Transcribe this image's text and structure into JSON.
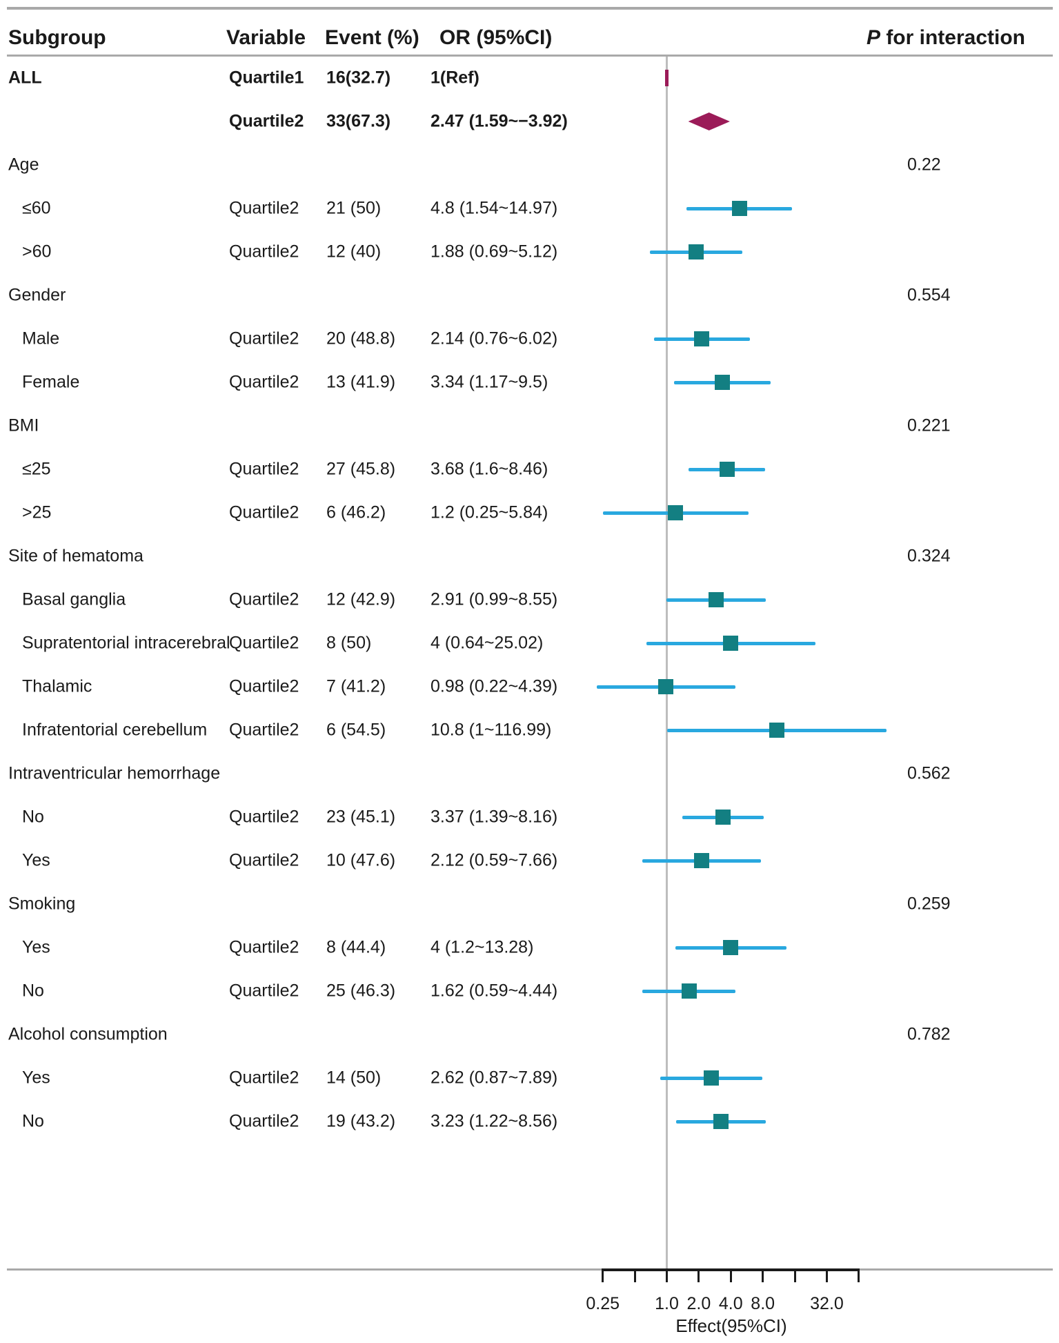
{
  "header": {
    "subgroup": "Subgroup",
    "variable": "Variable",
    "event": "Event (%)",
    "or": "OR (95%CI)",
    "p_italic": "P",
    "p_rest": " for interaction"
  },
  "colors": {
    "square": "#137f82",
    "ci_line": "#29a8df",
    "summary": "#9b1b58",
    "rule_gray": "#a9a9a9",
    "refline_gray": "#bdbdbd",
    "axis_black": "#1a1a1a",
    "text": "#1a1a1a"
  },
  "chart_data": {
    "type": "forest",
    "xlabel": "Effect(95%CI)",
    "x_scale": "log2",
    "x_range": [
      0.25,
      64
    ],
    "reference_line": 1.0,
    "x_ticks": [
      0.25,
      0.5,
      1.0,
      2.0,
      4.0,
      8.0,
      16.0,
      32.0,
      64.0
    ],
    "x_tick_labels": [
      "0.25",
      "",
      "1.0",
      "2.0",
      "4.0",
      "8.0",
      "",
      "32.0",
      ""
    ],
    "legend": "none",
    "rows": [
      {
        "kind": "all",
        "label": "ALL",
        "variable": "Quartile1",
        "event": "16(32.7)",
        "or": "1(Ref)",
        "marker": "ref-tick",
        "est": 1
      },
      {
        "kind": "all",
        "label": "",
        "variable": "Quartile2",
        "event": "33(67.3)",
        "or": "2.47 (1.59~−3.92)",
        "marker": "diamond",
        "est": 2.47,
        "lo": 1.59,
        "hi": 3.92
      },
      {
        "kind": "section",
        "label": "Age",
        "p": "0.22"
      },
      {
        "kind": "item",
        "label": "≤60",
        "variable": "Quartile2",
        "event": "21 (50)",
        "or": "4.8 (1.54~14.97)",
        "est": 4.8,
        "lo": 1.54,
        "hi": 14.97
      },
      {
        "kind": "item",
        "label": ">60",
        "variable": "Quartile2",
        "event": "12 (40)",
        "or": "1.88 (0.69~5.12)",
        "est": 1.88,
        "lo": 0.69,
        "hi": 5.12
      },
      {
        "kind": "section",
        "label": "Gender",
        "p": "0.554"
      },
      {
        "kind": "item",
        "label": "Male",
        "variable": "Quartile2",
        "event": "20 (48.8)",
        "or": "2.14 (0.76~6.02)",
        "est": 2.14,
        "lo": 0.76,
        "hi": 6.02
      },
      {
        "kind": "item",
        "label": "Female",
        "variable": "Quartile2",
        "event": "13 (41.9)",
        "or": "3.34 (1.17~9.5)",
        "est": 3.34,
        "lo": 1.17,
        "hi": 9.5
      },
      {
        "kind": "section",
        "label": "BMI",
        "p": "0.221"
      },
      {
        "kind": "item",
        "label": "≤25",
        "variable": "Quartile2",
        "event": "27 (45.8)",
        "or": "3.68 (1.6~8.46)",
        "est": 3.68,
        "lo": 1.6,
        "hi": 8.46
      },
      {
        "kind": "item",
        "label": ">25",
        "variable": "Quartile2",
        "event": "6 (46.2)",
        "or": "1.2 (0.25~5.84)",
        "est": 1.2,
        "lo": 0.25,
        "hi": 5.84
      },
      {
        "kind": "section",
        "label": "Site of hematoma",
        "p": "0.324"
      },
      {
        "kind": "item",
        "label": "Basal ganglia",
        "variable": "Quartile2",
        "event": "12 (42.9)",
        "or": "2.91 (0.99~8.55)",
        "est": 2.91,
        "lo": 0.99,
        "hi": 8.55
      },
      {
        "kind": "item",
        "label": "Supratentorial intracerebral",
        "variable": "Quartile2",
        "event": "8 (50)",
        "or": "4 (0.64~25.02)",
        "est": 4,
        "lo": 0.64,
        "hi": 25.02
      },
      {
        "kind": "item",
        "label": "Thalamic",
        "variable": "Quartile2",
        "event": "7 (41.2)",
        "or": "0.98 (0.22~4.39)",
        "est": 0.98,
        "lo": 0.22,
        "hi": 4.39
      },
      {
        "kind": "item",
        "label": "Infratentorial cerebellum",
        "variable": "Quartile2",
        "event": "6 (54.5)",
        "or": "10.8 (1~116.99)",
        "est": 10.8,
        "lo": 1,
        "hi": 116.99
      },
      {
        "kind": "section",
        "label": "Intraventricular hemorrhage",
        "p": "0.562"
      },
      {
        "kind": "item",
        "label": "No",
        "variable": "Quartile2",
        "event": "23 (45.1)",
        "or": "3.37 (1.39~8.16)",
        "est": 3.37,
        "lo": 1.39,
        "hi": 8.16
      },
      {
        "kind": "item",
        "label": "Yes",
        "variable": "Quartile2",
        "event": "10 (47.6)",
        "or": "2.12 (0.59~7.66)",
        "est": 2.12,
        "lo": 0.59,
        "hi": 7.66
      },
      {
        "kind": "section",
        "label": "Smoking",
        "p": "0.259"
      },
      {
        "kind": "item",
        "label": "Yes",
        "variable": "Quartile2",
        "event": "8 (44.4)",
        "or": "4 (1.2~13.28)",
        "est": 4,
        "lo": 1.2,
        "hi": 13.28
      },
      {
        "kind": "item",
        "label": "No",
        "variable": "Quartile2",
        "event": "25 (46.3)",
        "or": "1.62 (0.59~4.44)",
        "est": 1.62,
        "lo": 0.59,
        "hi": 4.44
      },
      {
        "kind": "section",
        "label": "Alcohol consumption",
        "p": "0.782"
      },
      {
        "kind": "item",
        "label": "Yes",
        "variable": "Quartile2",
        "event": "14 (50)",
        "or": "2.62 (0.87~7.89)",
        "est": 2.62,
        "lo": 0.87,
        "hi": 7.89
      },
      {
        "kind": "item",
        "label": "No",
        "variable": "Quartile2",
        "event": "19 (43.2)",
        "or": "3.23 (1.22~8.56)",
        "est": 3.23,
        "lo": 1.22,
        "hi": 8.56
      }
    ]
  }
}
